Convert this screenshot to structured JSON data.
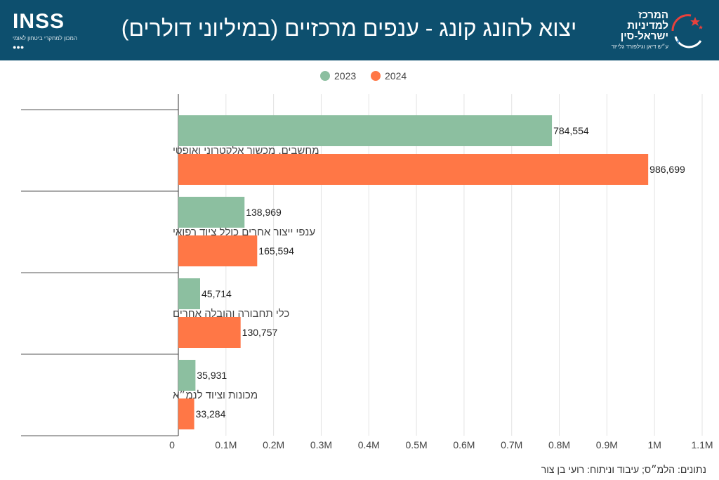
{
  "header": {
    "title": "יצוא להונג קונג - ענפים מרכזיים (במיליוני דולרים)",
    "background": "#0d4f6e"
  },
  "logos": {
    "inss": {
      "word": "INSS",
      "subtitle": "המכון למחקרי ביטחון לאומי"
    },
    "center": {
      "name": "המרכז למדיניות ישראל-סין",
      "subtitle": "ע״ש דיאן וגילפורד גלייזר"
    }
  },
  "legend": [
    {
      "label": "2023",
      "color": "#8cbfa0"
    },
    {
      "label": "2024",
      "color": "#ff7746"
    }
  ],
  "chart_data": {
    "type": "bar",
    "orientation": "horizontal",
    "categories": [
      "מחשבים, מכשור אלקטרוני ואופטי",
      "ענפי ייצור אחרים כולל ציוד רפואי",
      "כלי תחבורה והובלה אחרים",
      "מכונות וציוד לנמ״א"
    ],
    "series": [
      {
        "name": "2023",
        "values": [
          784554,
          138969,
          45714,
          35931
        ],
        "color": "#8cbfa0"
      },
      {
        "name": "2024",
        "values": [
          986699,
          165594,
          130757,
          33284
        ],
        "color": "#ff7746"
      }
    ],
    "value_labels": {
      "2023": [
        "784,554",
        "138,969",
        "45,714",
        "35,931"
      ],
      "2024": [
        "986,699",
        "165,594",
        "130,757",
        "33,284"
      ]
    },
    "xlim": [
      0,
      1100000
    ],
    "xticks": [
      0,
      100000,
      200000,
      300000,
      400000,
      500000,
      600000,
      700000,
      800000,
      900000,
      1000000,
      1100000
    ],
    "xtick_labels": [
      "0",
      "0.1M",
      "0.2M",
      "0.3M",
      "0.4M",
      "0.5M",
      "0.6M",
      "0.7M",
      "0.8M",
      "0.9M",
      "1M",
      "1.1M"
    ],
    "grid": true,
    "legend_position": "top-center"
  },
  "source": "נתונים: הלמ״ס; עיבוד וניתוח: רועי בן צור"
}
